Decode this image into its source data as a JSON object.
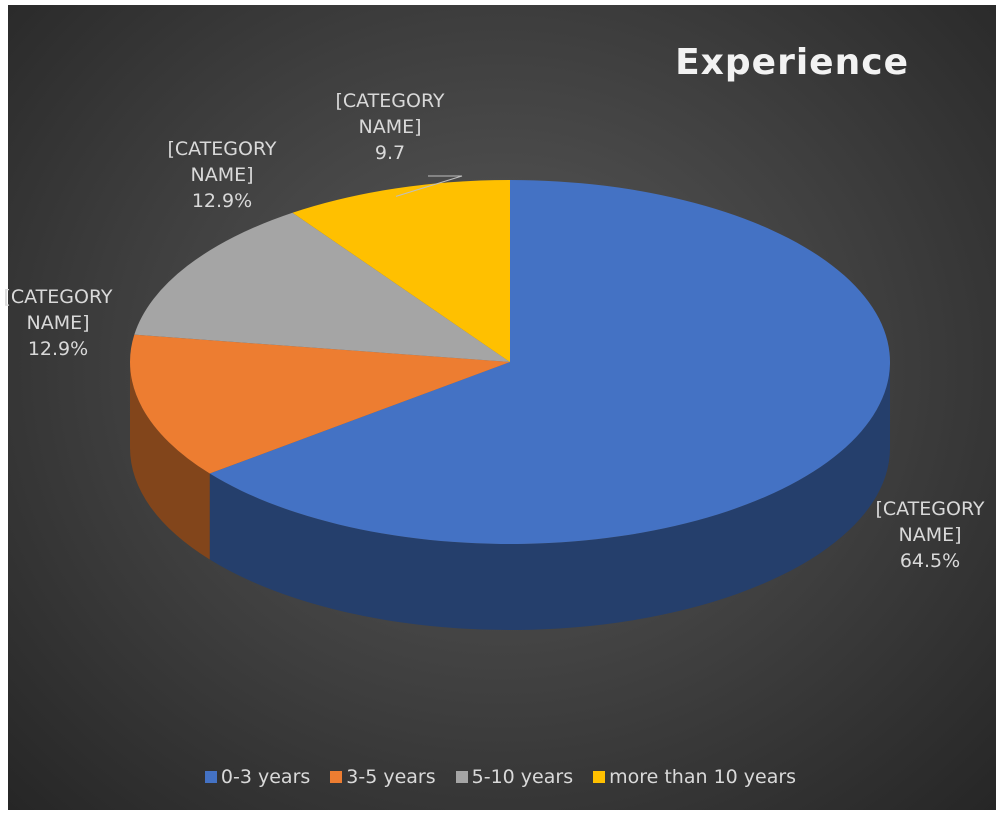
{
  "chart_data": {
    "type": "pie",
    "title": "Experience",
    "categories": [
      "0-3 years",
      "3-5 years",
      "5-10 years",
      "more than 10 years"
    ],
    "values": [
      64.5,
      12.9,
      12.9,
      9.7
    ],
    "value_labels": [
      "64.5%",
      "12.9%",
      "12.9%",
      "9.7"
    ],
    "label_names": [
      "[CATEGORY NAME]",
      "[CATEGORY NAME]",
      "[CATEGORY NAME]",
      "[CATEGORY NAME]"
    ],
    "colors": [
      "#4472c4",
      "#ed7d31",
      "#a5a5a5",
      "#ffc000"
    ],
    "legend": "bottom"
  }
}
